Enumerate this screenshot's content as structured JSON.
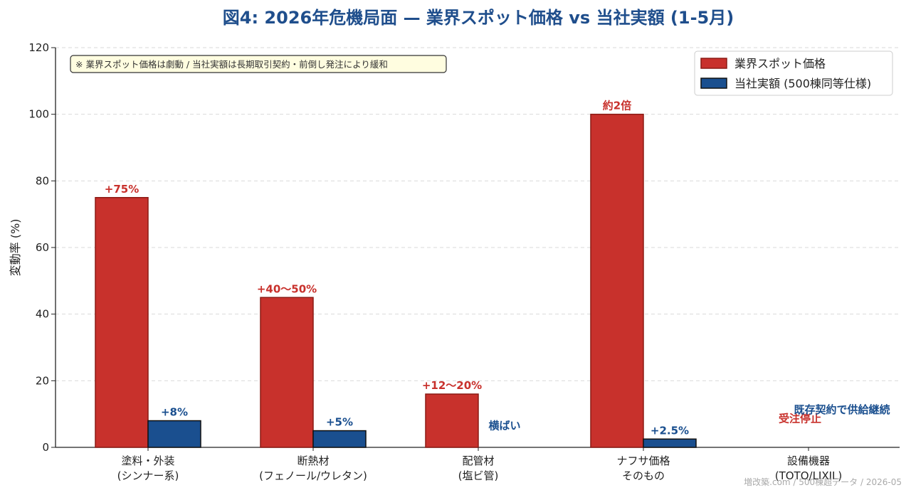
{
  "chart_data": {
    "type": "bar",
    "title": "図4: 2026年危機局面 — 業界スポット価格 vs 当社実額 (1-5月)",
    "ylabel": "変動率 (%)",
    "ylim": [
      0,
      120
    ],
    "yticks": [
      0,
      20,
      40,
      60,
      80,
      100,
      120
    ],
    "grid": "horizontal-dashed",
    "legend_position": "top-right",
    "categories": [
      [
        "塗料・外装",
        "(シンナー系)"
      ],
      [
        "断熱材",
        "(フェノール/ウレタン)"
      ],
      [
        "配管材",
        "(塩ビ管)"
      ],
      [
        "ナフサ価格",
        "そのもの"
      ],
      [
        "設備機器",
        "(TOTO/LIXIL)"
      ]
    ],
    "series": [
      {
        "name": "業界スポット価格",
        "color": "#c8312c",
        "edge": "#8b1a14",
        "values": [
          75,
          45,
          16,
          100,
          0
        ],
        "labels": [
          "+75%",
          "+40〜50%",
          "+12〜20%",
          "約2倍",
          "受注停止"
        ]
      },
      {
        "name": "当社実額 (500棟同等仕様)",
        "color": "#1a4f8f",
        "edge": "#111111",
        "values": [
          8,
          5,
          0,
          2.5,
          0
        ],
        "labels": [
          "+8%",
          "+5%",
          "横ばい",
          "+2.5%",
          "既存契約で供給継続"
        ]
      }
    ],
    "annotation": "※ 業界スポット価格は劇動 / 当社実額は長期取引契約・前倒し発注により緩和",
    "footer": "増改築.com / 500棟超データ / 2026-05"
  },
  "colors": {
    "title": "#1f4e8c",
    "red_label": "#c8312c",
    "blue_label": "#1a4f8f",
    "note_bg": "#fffde0"
  }
}
